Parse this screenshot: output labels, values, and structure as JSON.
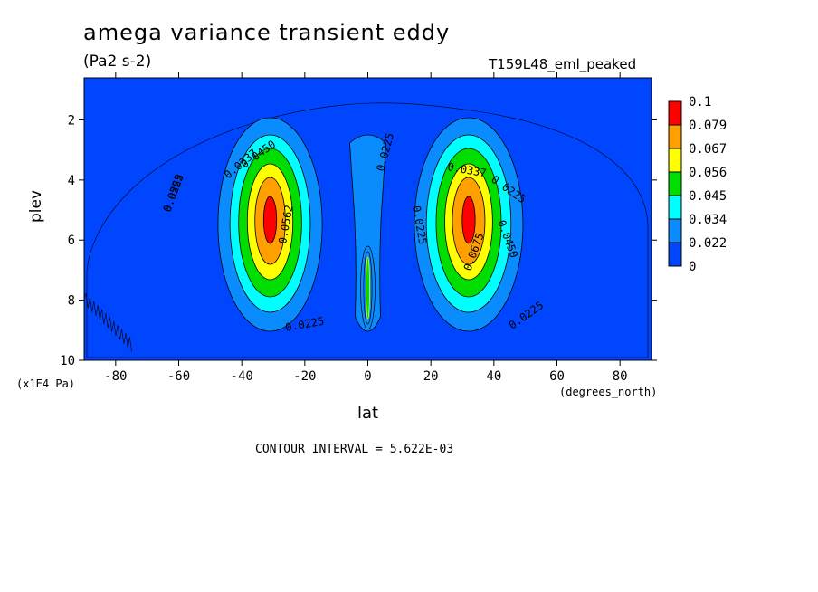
{
  "chart_data": {
    "type": "contour",
    "title": "amega variance transient eddy",
    "units": "(Pa2 s-2)",
    "run_name": "T159L48_eml_peaked",
    "xlabel": "lat",
    "xunits": "(degrees_north)",
    "ylabel": "plev",
    "yunits": "(x1E4 Pa)",
    "xlim": [
      -90,
      90
    ],
    "ylim": [
      10,
      0.6
    ],
    "x_ticks": [
      "-80",
      "-60",
      "-40",
      "-20",
      "0",
      "20",
      "40",
      "60",
      "80"
    ],
    "y_ticks": [
      "2",
      "4",
      "6",
      "8",
      "10"
    ],
    "colorbar": {
      "labels": [
        "0.1",
        "0.079",
        "0.067",
        "0.056",
        "0.045",
        "0.034",
        "0.022",
        "0"
      ],
      "colors": [
        "#ff0000",
        "#ff9f00",
        "#ffff00",
        "#00dd00",
        "#00ffff",
        "#0a8cff",
        "#0046ff"
      ]
    },
    "contour_interval_text": "CONTOUR INTERVAL = 5.622E-03",
    "contour_labels": [
      "0.0225",
      "0.0337",
      "0.0450",
      "0.0562",
      "0.0675",
      "0.0225",
      "0.0337",
      "0.0450",
      "0.0562",
      "0.0225",
      "0.0225",
      "0.0225",
      "0.0225",
      "0.0225"
    ],
    "maxima": [
      {
        "lat": -31,
        "plev": 5.3,
        "value": 0.0787
      },
      {
        "lat": 32,
        "plev": 5.3,
        "value": 0.0787
      },
      {
        "lat": 0,
        "plev": 7.8,
        "value": 0.0562
      }
    ]
  }
}
